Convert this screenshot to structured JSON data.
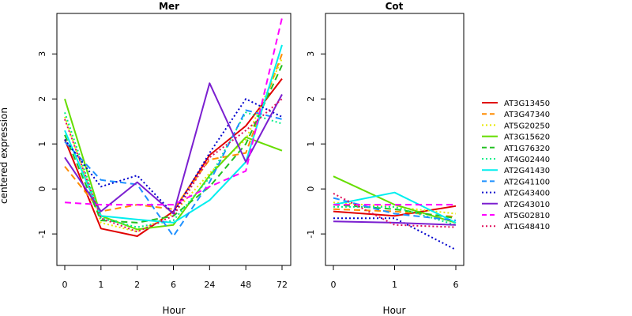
{
  "chart_data": [
    {
      "type": "line",
      "title": "Mer",
      "xlabel": "Hour",
      "ylabel": "centered expression",
      "categories": [
        "0",
        "1",
        "2",
        "6",
        "24",
        "48",
        "72"
      ],
      "ylim": [
        -1.7,
        3.9
      ],
      "yticks": [
        -1,
        0,
        1,
        2,
        3
      ],
      "series": [
        {
          "name": "AT3G13450",
          "color": "#e00000",
          "dash": "solid",
          "values": [
            1.1,
            -0.88,
            -1.05,
            -0.5,
            0.75,
            1.4,
            2.45
          ]
        },
        {
          "name": "AT3G47340",
          "color": "#ff8c00",
          "dash": "dashed",
          "values": [
            0.5,
            -0.5,
            -0.35,
            -0.45,
            0.65,
            0.8,
            3.0
          ]
        },
        {
          "name": "AT5G20250",
          "color": "#e8e800",
          "dash": "dotted",
          "values": [
            1.6,
            -0.75,
            -0.95,
            -0.55,
            0.35,
            1.1,
            2.9
          ]
        },
        {
          "name": "AT3G15620",
          "color": "#66dd00",
          "dash": "solid",
          "values": [
            2.0,
            -0.6,
            -0.9,
            -0.8,
            0.3,
            1.15,
            0.85
          ]
        },
        {
          "name": "AT1G76320",
          "color": "#22c022",
          "dash": "dashed",
          "values": [
            1.2,
            -0.7,
            -0.75,
            -0.6,
            0.05,
            1.0,
            2.75
          ]
        },
        {
          "name": "AT4G02440",
          "color": "#00ee88",
          "dash": "dotted",
          "values": [
            1.7,
            -0.65,
            -0.85,
            -0.7,
            0.25,
            1.7,
            1.45
          ]
        },
        {
          "name": "AT2G41430",
          "color": "#00eeee",
          "dash": "solid",
          "values": [
            1.3,
            -0.6,
            -0.68,
            -0.75,
            -0.25,
            0.6,
            3.2
          ]
        },
        {
          "name": "AT2G41100",
          "color": "#1e90ff",
          "dash": "dashed",
          "values": [
            1.05,
            0.2,
            0.1,
            -1.05,
            0.15,
            1.75,
            1.55
          ]
        },
        {
          "name": "AT2G43400",
          "color": "#0000cd",
          "dash": "dotted",
          "values": [
            1.1,
            0.05,
            0.3,
            -0.55,
            0.8,
            2.0,
            1.6
          ]
        },
        {
          "name": "AT2G43010",
          "color": "#7b1fd0",
          "dash": "solid",
          "values": [
            0.7,
            -0.5,
            0.15,
            -0.55,
            2.35,
            0.6,
            2.1
          ]
        },
        {
          "name": "AT5G02810",
          "color": "#ff00ff",
          "dash": "dashed",
          "values": [
            -0.3,
            -0.35,
            -0.35,
            -0.35,
            0.05,
            0.4,
            3.8
          ]
        },
        {
          "name": "AT1G48410",
          "color": "#e0105a",
          "dash": "dotted",
          "values": [
            1.55,
            -0.65,
            -0.95,
            -0.6,
            0.7,
            1.3,
            2.0
          ]
        }
      ]
    },
    {
      "type": "line",
      "title": "Cot",
      "xlabel": "Hour",
      "categories": [
        "0",
        "1",
        "6"
      ],
      "ylim": [
        -1.7,
        3.9
      ],
      "yticks": [
        -1,
        0,
        1,
        2,
        3
      ],
      "series": [
        {
          "name": "AT3G13450",
          "color": "#e00000",
          "dash": "solid",
          "values": [
            -0.5,
            -0.6,
            -0.38
          ]
        },
        {
          "name": "AT3G47340",
          "color": "#ff8c00",
          "dash": "dashed",
          "values": [
            -0.45,
            -0.5,
            -0.62
          ]
        },
        {
          "name": "AT5G20250",
          "color": "#e8e800",
          "dash": "dotted",
          "values": [
            -0.3,
            -0.4,
            -0.55
          ]
        },
        {
          "name": "AT3G15620",
          "color": "#66dd00",
          "dash": "solid",
          "values": [
            0.28,
            -0.35,
            -0.75
          ]
        },
        {
          "name": "AT1G76320",
          "color": "#22c022",
          "dash": "dashed",
          "values": [
            -0.35,
            -0.45,
            -0.65
          ]
        },
        {
          "name": "AT4G02440",
          "color": "#00ee88",
          "dash": "dotted",
          "values": [
            -0.4,
            -0.4,
            -0.8
          ]
        },
        {
          "name": "AT2G41430",
          "color": "#00eeee",
          "dash": "solid",
          "values": [
            -0.35,
            -0.08,
            -0.75
          ]
        },
        {
          "name": "AT2G41100",
          "color": "#1e90ff",
          "dash": "dashed",
          "values": [
            -0.2,
            -0.55,
            -0.7
          ]
        },
        {
          "name": "AT2G43400",
          "color": "#0000cd",
          "dash": "dotted",
          "values": [
            -0.65,
            -0.65,
            -1.35
          ]
        },
        {
          "name": "AT2G43010",
          "color": "#7b1fd0",
          "dash": "solid",
          "values": [
            -0.72,
            -0.75,
            -0.8
          ]
        },
        {
          "name": "AT5G02810",
          "color": "#ff00ff",
          "dash": "dashed",
          "values": [
            -0.35,
            -0.35,
            -0.35
          ]
        },
        {
          "name": "AT1G48410",
          "color": "#e0105a",
          "dash": "dotted",
          "values": [
            -0.1,
            -0.8,
            -0.85
          ]
        }
      ]
    }
  ]
}
